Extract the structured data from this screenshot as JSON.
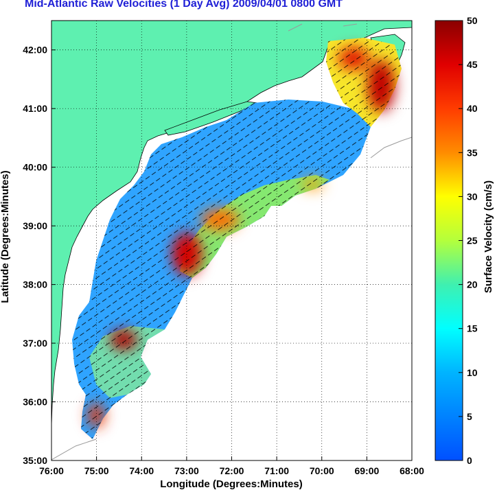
{
  "title": "Mid-Atlantic Raw Velocities (1 Day Avg) 2009/04/01 0800 GMT",
  "chart_data": {
    "type": "heatmap",
    "xlabel": "Longitude (Degrees:Minutes)",
    "ylabel": "Latitude (Degrees:Minutes)",
    "x_tick_labels": [
      "76:00",
      "75:00",
      "74:00",
      "73:00",
      "72:00",
      "71:00",
      "70:00",
      "69:00",
      "68:00"
    ],
    "y_tick_labels": [
      "35:00",
      "36:00",
      "37:00",
      "38:00",
      "39:00",
      "40:00",
      "41:00",
      "42:00"
    ],
    "xlim": [
      -76,
      -68
    ],
    "ylim": [
      35,
      42.5
    ],
    "grid": true,
    "colorbar": {
      "label": "Surface Velocity (cm/s)",
      "ticks": [
        "0",
        "5",
        "10",
        "15",
        "20",
        "25",
        "30",
        "35",
        "40",
        "45",
        "50"
      ],
      "range": [
        0,
        50
      ],
      "colormap": "jet"
    },
    "hotspots": [
      {
        "lon": -73.0,
        "lat": 38.4,
        "velocity": 45
      },
      {
        "lon": -72.3,
        "lat": 39.1,
        "velocity": 35
      },
      {
        "lon": -74.5,
        "lat": 37.0,
        "velocity": 48
      },
      {
        "lon": -75.0,
        "lat": 35.7,
        "velocity": 42
      },
      {
        "lon": -68.8,
        "lat": 41.2,
        "velocity": 50
      },
      {
        "lon": -69.7,
        "lat": 42.0,
        "velocity": 45
      },
      {
        "lon": -70.2,
        "lat": 39.7,
        "velocity": 30
      }
    ]
  },
  "colors": {
    "land": "#5ef0b0",
    "title": "#1f1fd6",
    "coast_contour": "#9a9a9a"
  }
}
